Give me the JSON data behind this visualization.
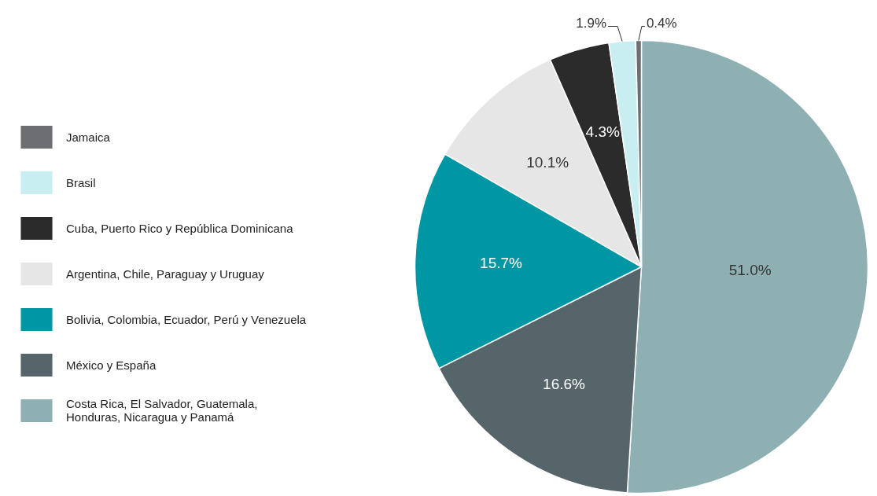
{
  "chart_data": {
    "type": "pie",
    "categories": [
      "Costa Rica, El Salvador, Guatemala,\nHonduras, Nicaragua y Panamá",
      "México y España",
      "Bolivia, Colombia, Ecuador, Perú y Venezuela",
      "Argentina, Chile, Paraguay y Uruguay",
      "Cuba, Puerto Rico y República Dominicana",
      "Brasil",
      "Jamaica"
    ],
    "values": [
      51.0,
      16.6,
      15.7,
      10.1,
      4.3,
      1.9,
      0.4
    ],
    "colors": [
      "#8fb0b3",
      "#55656a",
      "#0097a5",
      "#e6e6e6",
      "#2b2b2b",
      "#c9eef1",
      "#6d6e72"
    ],
    "value_labels": [
      "51.0%",
      "16.6%",
      "15.7%",
      "10.1%",
      "4.3%",
      "1.9%",
      "0.4%"
    ],
    "legend": "left"
  }
}
